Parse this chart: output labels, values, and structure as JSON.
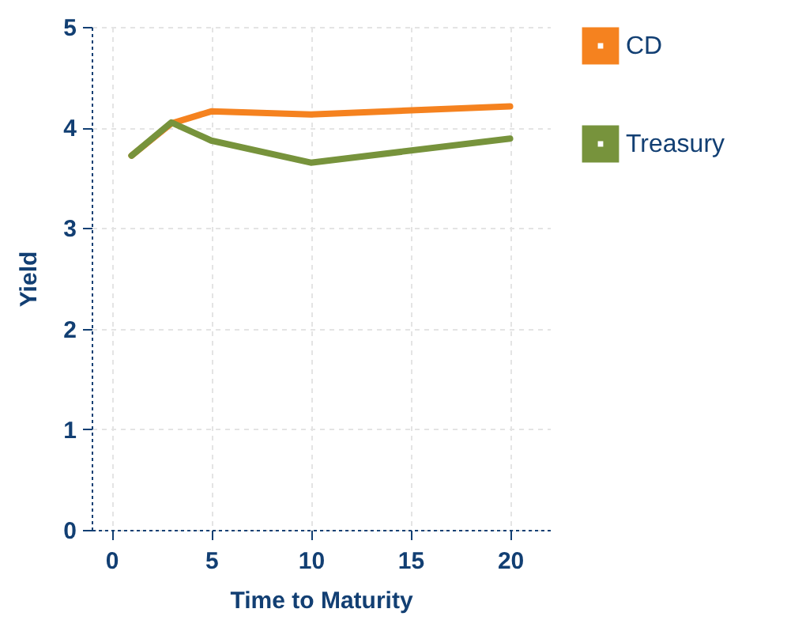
{
  "chart_data": {
    "type": "line",
    "xlabel": "Time to Maturity",
    "ylabel": "Yield",
    "x": [
      1,
      3,
      5,
      10,
      20
    ],
    "series": [
      {
        "name": "CD",
        "color": "#f5821f",
        "values": [
          3.72,
          4.04,
          4.16,
          4.13,
          4.21
        ]
      },
      {
        "name": "Treasury",
        "color": "#77933c",
        "values": [
          3.72,
          4.05,
          3.87,
          3.65,
          3.89
        ]
      }
    ],
    "xlim": [
      -1,
      22
    ],
    "xticks": [
      0,
      5,
      10,
      15,
      20
    ],
    "ylim": [
      0,
      5
    ],
    "yticks": [
      0,
      1,
      2,
      3,
      4,
      5
    ],
    "grid": true,
    "legend": "right",
    "marker": "none",
    "line_style": "solid"
  }
}
